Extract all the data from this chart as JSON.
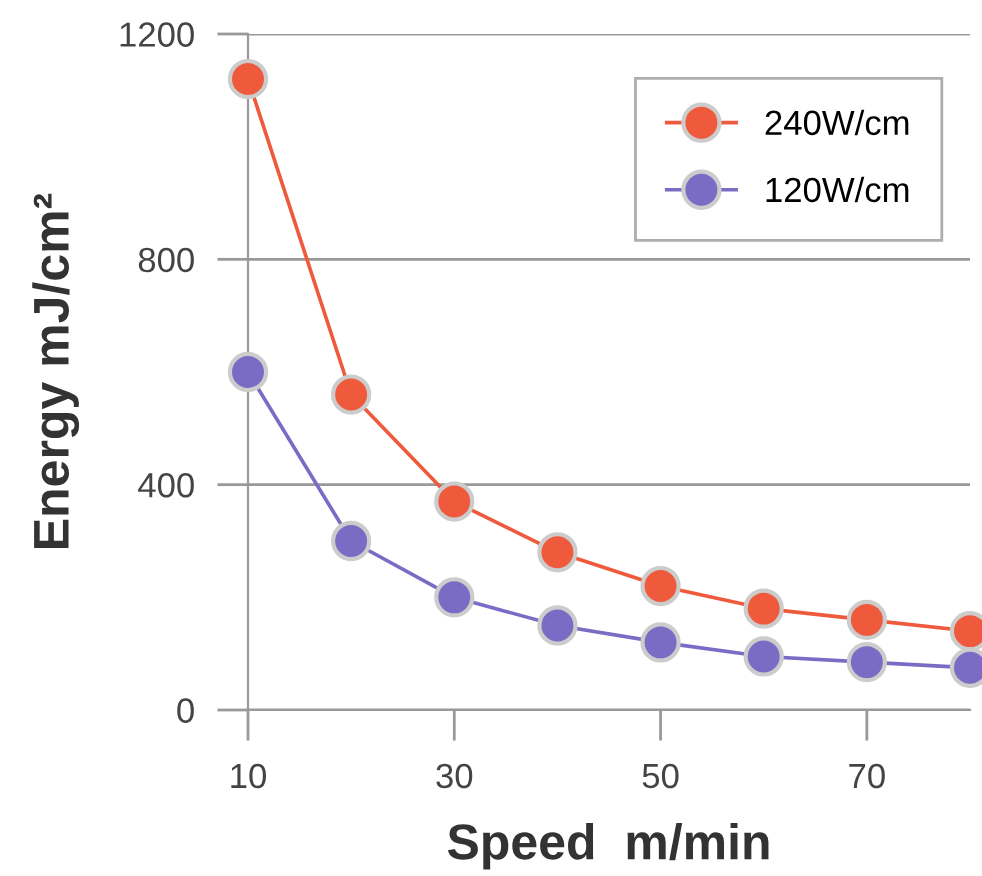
{
  "chart_data": {
    "type": "line",
    "xlabel": "Speed  m/min",
    "ylabel": "Energy mJ/cm²",
    "x": [
      10,
      20,
      30,
      40,
      50,
      60,
      70,
      80
    ],
    "series": [
      {
        "name": "240W/cm",
        "color": "#ef5a3c",
        "values": [
          1120,
          560,
          370,
          280,
          220,
          180,
          160,
          140
        ]
      },
      {
        "name": "120W/cm",
        "color": "#7a6cc4",
        "values": [
          600,
          300,
          200,
          150,
          120,
          95,
          85,
          75
        ]
      }
    ],
    "xlim": [
      10,
      80
    ],
    "xticks": [
      10,
      30,
      50,
      70
    ],
    "ylim": [
      0,
      1200
    ],
    "yticks": [
      0,
      400,
      800,
      1200
    ],
    "grid": "y",
    "legend": "top right",
    "marker": "circle",
    "line_style": "solid"
  }
}
